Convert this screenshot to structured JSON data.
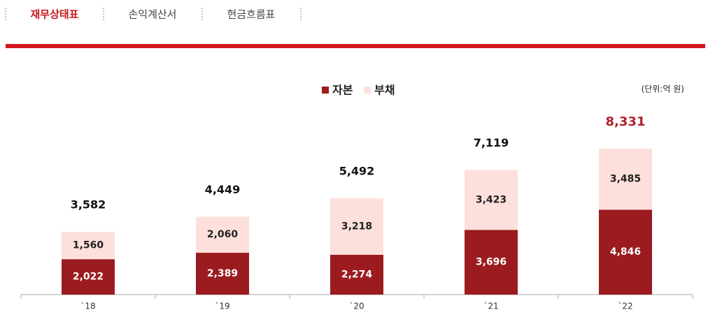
{
  "tabs": [
    "재무상태표",
    "손익계산서",
    "현금흐름표"
  ],
  "chart_data": {
    "type": "stacked-bar",
    "unit": "(단위:억 원)",
    "categories": [
      "`18",
      "`19",
      "`20",
      "`21",
      "`22"
    ],
    "series": [
      {
        "name": "자본",
        "color": "#9b1b1f",
        "values": [
          2022,
          2389,
          2274,
          3696,
          4846
        ],
        "value_labels": [
          "2,022",
          "2,389",
          "2,274",
          "3,696",
          "4,846"
        ]
      },
      {
        "name": "부채",
        "color": "#fde0dc",
        "values": [
          1560,
          2060,
          3218,
          3423,
          3485
        ],
        "value_labels": [
          "1,560",
          "2,060",
          "3,218",
          "3,423",
          "3,485"
        ]
      }
    ],
    "totals": [
      3582,
      4449,
      5492,
      7119,
      8331
    ],
    "total_labels": [
      "3,582",
      "4,449",
      "5,492",
      "7,119",
      "8,331"
    ],
    "legend": "top"
  }
}
